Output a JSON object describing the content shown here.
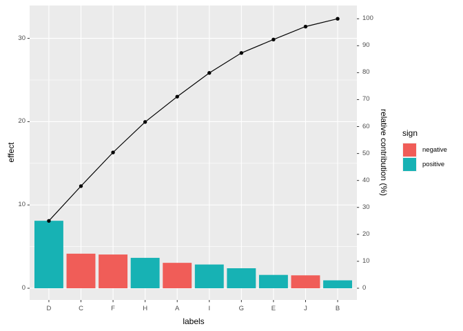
{
  "chart_data": {
    "type": "bar",
    "subtype": "pareto-chart-with-cumulative-line",
    "title": "",
    "xlabel": "labels",
    "ylabel": "effect",
    "y2label": "relative contribution (%)",
    "categories": [
      "D",
      "C",
      "F",
      "H",
      "A",
      "I",
      "G",
      "E",
      "J",
      "B"
    ],
    "series": [
      {
        "name": "effect",
        "type": "bar",
        "values": [
          8.1,
          4.15,
          4.05,
          3.65,
          3.05,
          2.85,
          2.4,
          1.6,
          1.55,
          0.95
        ],
        "signs": [
          "positive",
          "negative",
          "negative",
          "positive",
          "negative",
          "positive",
          "positive",
          "positive",
          "negative",
          "positive"
        ]
      },
      {
        "name": "cumulative relative contribution (%)",
        "type": "line",
        "axis": "right",
        "values": [
          25.0,
          37.9,
          50.4,
          61.7,
          71.1,
          79.9,
          87.3,
          92.3,
          97.1,
          100.0
        ]
      }
    ],
    "y_axis_ticks": [
      0,
      10,
      20,
      30
    ],
    "y_axis_minor_ticks": [
      5,
      15,
      25
    ],
    "y2_axis_ticks": [
      0,
      10,
      20,
      30,
      40,
      50,
      60,
      70,
      80,
      90,
      100
    ],
    "ylim": [
      -1.6,
      33.9
    ],
    "y2lim": [
      0,
      100
    ],
    "grid": "white major gridlines on gray panel; minor horizontal gridlines; vertical gridlines at category centers",
    "legend": {
      "title": "sign",
      "position": "right",
      "items": [
        {
          "label": "negative",
          "color": "#F05D58"
        },
        {
          "label": "positive",
          "color": "#17B2B4"
        }
      ]
    },
    "colors": {
      "negative": "#F05D58",
      "positive": "#17B2B4",
      "line": "#000000",
      "point": "#000000",
      "panel_bg": "#EBEBEB",
      "grid": "#FFFFFF",
      "tick_mark": "#333333",
      "tick_text": "#4D4D4D"
    }
  }
}
